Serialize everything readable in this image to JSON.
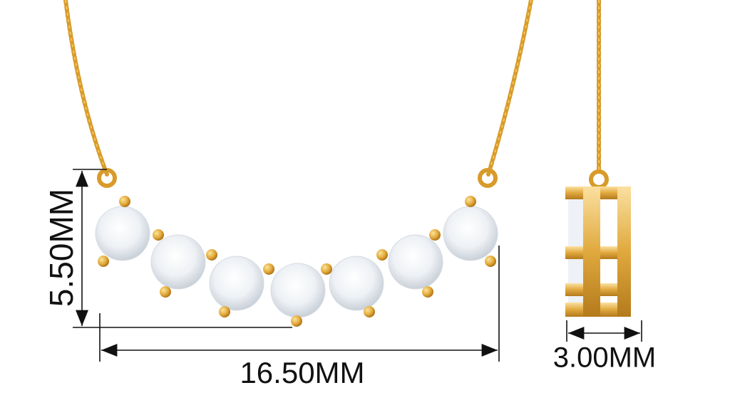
{
  "dimensions": {
    "height": "5.50MM",
    "width": "16.50MM",
    "depth": "3.00MM"
  }
}
